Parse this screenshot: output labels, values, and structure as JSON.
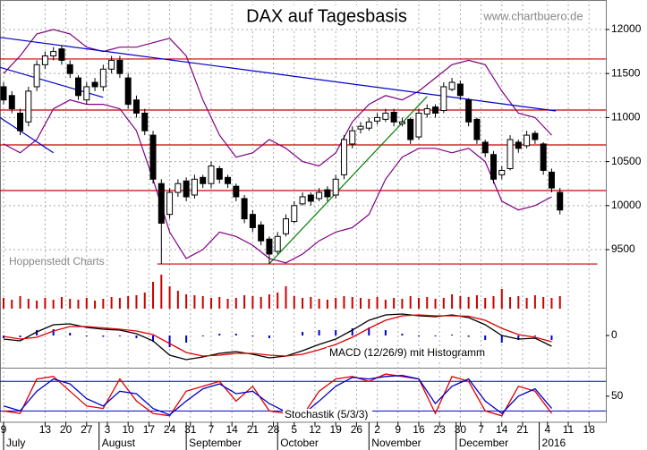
{
  "chart_data": [
    {
      "type": "candlestick",
      "title": "DAX auf Tagesbasis",
      "annotations": [
        "www.chartbuero.de",
        "Hoppenstedt Charts"
      ],
      "x": [
        0,
        2,
        4,
        6,
        8,
        10,
        12,
        14,
        16,
        18,
        20,
        22,
        24,
        26,
        28,
        30,
        32,
        34,
        36,
        38,
        40,
        42,
        44,
        46,
        48,
        50,
        52,
        54,
        56,
        58,
        60,
        62,
        64,
        66,
        68,
        70,
        72,
        74,
        76,
        78,
        80,
        82,
        84,
        86,
        88,
        90,
        92,
        94,
        96,
        98,
        100,
        102,
        104,
        106,
        108,
        110,
        112,
        114,
        116,
        118,
        120,
        122,
        124,
        126,
        128,
        130,
        132,
        134
      ],
      "open": [
        11350,
        11250,
        11050,
        10950,
        11350,
        11600,
        11700,
        11780,
        11600,
        11450,
        11200,
        11400,
        11350,
        11550,
        11650,
        11450,
        11200,
        11050,
        10800,
        10250,
        9900,
        10150,
        10280,
        10120,
        10320,
        10250,
        10420,
        10320,
        10220,
        10080,
        9900,
        9780,
        9620,
        9480,
        9680,
        9820,
        10020,
        10120,
        10080,
        10180,
        10120,
        10350,
        10700,
        10870,
        10880,
        10960,
        10980,
        11060,
        10930,
        10980,
        10780,
        11040,
        11120,
        11080,
        11320,
        11380,
        11200,
        10980,
        10720,
        10580,
        10350,
        10420,
        10720,
        10680,
        10820,
        10700,
        10380,
        10150
      ],
      "high": [
        11400,
        11300,
        11100,
        11350,
        11650,
        11750,
        11800,
        11820,
        11650,
        11480,
        11400,
        11450,
        11600,
        11700,
        11700,
        11500,
        11250,
        11100,
        10850,
        10300,
        10200,
        10300,
        10320,
        10350,
        10350,
        10500,
        10450,
        10350,
        10250,
        10120,
        9950,
        9820,
        9650,
        9700,
        9900,
        10050,
        10150,
        10150,
        10200,
        10220,
        10350,
        10800,
        10900,
        10950,
        11000,
        11050,
        11100,
        11100,
        11000,
        11000,
        11100,
        11150,
        11150,
        11400,
        11450,
        11420,
        11220,
        11000,
        10750,
        10620,
        10450,
        10800,
        10750,
        10850,
        10850,
        10720,
        10420,
        10200
      ],
      "low": [
        11150,
        11050,
        10800,
        10900,
        11300,
        11550,
        11650,
        11600,
        11450,
        11200,
        11150,
        11300,
        11300,
        11500,
        11450,
        11100,
        11000,
        10800,
        10250,
        9338,
        9850,
        10100,
        10050,
        10080,
        10200,
        10200,
        10250,
        10200,
        10050,
        9800,
        9700,
        9550,
        9340,
        9450,
        9650,
        9800,
        10000,
        10000,
        10050,
        10050,
        10080,
        10300,
        10650,
        10820,
        10850,
        10920,
        10950,
        10900,
        10900,
        10700,
        10750,
        11000,
        11000,
        11050,
        11300,
        11200,
        10900,
        10700,
        10550,
        10250,
        10300,
        10400,
        10600,
        10650,
        10700,
        10350,
        10150,
        9900
      ],
      "close": [
        11200,
        11100,
        10850,
        11300,
        11600,
        11700,
        11750,
        11650,
        11500,
        11250,
        11350,
        11350,
        11550,
        11650,
        11500,
        11150,
        11050,
        10850,
        10300,
        9800,
        10150,
        10250,
        10100,
        10300,
        10250,
        10450,
        10300,
        10250,
        10100,
        9850,
        9750,
        9600,
        9450,
        9650,
        9850,
        10000,
        10100,
        10050,
        10150,
        10100,
        10300,
        10750,
        10850,
        10900,
        10950,
        11000,
        11050,
        10950,
        10950,
        10750,
        11050,
        11100,
        11050,
        11350,
        11400,
        11250,
        10950,
        10750,
        10600,
        10300,
        10400,
        10750,
        10650,
        10800,
        10750,
        10400,
        10200,
        9950
      ],
      "bollinger": {
        "color": "#800080",
        "x": [
          0,
          4,
          8,
          12,
          16,
          20,
          24,
          28,
          32,
          36,
          40,
          44,
          48,
          52,
          56,
          60,
          64,
          68,
          72,
          76,
          80,
          84,
          88,
          92,
          96,
          100,
          104,
          108,
          112,
          116,
          120,
          124,
          128,
          132
        ],
        "upper": [
          11500,
          11700,
          11950,
          12000,
          11950,
          11800,
          11750,
          11800,
          11800,
          11850,
          11900,
          11700,
          11200,
          10800,
          10550,
          10600,
          10750,
          10650,
          10500,
          10450,
          10600,
          10950,
          11150,
          11250,
          11200,
          11300,
          11450,
          11600,
          11650,
          11600,
          11300,
          11050,
          11000,
          10800
        ],
        "lower": [
          10700,
          10600,
          10750,
          11100,
          11200,
          11150,
          11150,
          11100,
          10850,
          10300,
          9700,
          9400,
          9500,
          9700,
          9650,
          9550,
          9400,
          9350,
          9450,
          9600,
          9700,
          9750,
          9900,
          10300,
          10550,
          10650,
          10650,
          10600,
          10650,
          10500,
          10050,
          9950,
          10000,
          10100
        ]
      },
      "lines": [
        {
          "color": "#0000cc",
          "x": [
            -0.86,
            133
          ],
          "y": [
            11910,
            11075
          ]
        },
        {
          "color": "#0000cc",
          "x": [
            -0.86,
            24
          ],
          "y": [
            11570,
            11230
          ]
        },
        {
          "color": "#0000cc",
          "x": [
            -0.86,
            12
          ],
          "y": [
            11000,
            10600
          ]
        },
        {
          "color": "#008000",
          "x": [
            64,
            102
          ],
          "y": [
            9340,
            11240
          ]
        }
      ],
      "hlines": [
        {
          "color": "#cc0000",
          "y": 11665,
          "x": [
            -0.86,
            145.05
          ]
        },
        {
          "color": "#cc0000",
          "y": 11085,
          "x": [
            -0.86,
            145.05
          ]
        },
        {
          "color": "#cc0000",
          "y": 10689,
          "x": [
            -0.86,
            145.05
          ]
        },
        {
          "color": "#cc0000",
          "y": 10171,
          "x": [
            -0.86,
            145.05
          ]
        },
        {
          "color": "#cc0000",
          "y": 9337,
          "x": [
            37,
            143
          ]
        }
      ],
      "xlim": [
        -0.86,
        145.05
      ],
      "ylim": [
        9287,
        12335
      ],
      "yticks": [
        9500,
        10000,
        10500,
        11000,
        11500,
        12000
      ],
      "grid": true,
      "xticks": [
        {
          "value": 0,
          "label": "9"
        },
        {
          "value": 10,
          "label": "13"
        },
        {
          "value": 15,
          "label": "20"
        },
        {
          "value": 20,
          "label": "27"
        },
        {
          "value": 25,
          "label": "3"
        },
        {
          "value": 30,
          "label": "10"
        },
        {
          "value": 35,
          "label": "17"
        },
        {
          "value": 40,
          "label": "24"
        },
        {
          "value": 45,
          "label": "31"
        },
        {
          "value": 50,
          "label": "7"
        },
        {
          "value": 55,
          "label": "14"
        },
        {
          "value": 60,
          "label": "21"
        },
        {
          "value": 65,
          "label": "28"
        },
        {
          "value": 70,
          "label": "5"
        },
        {
          "value": 75,
          "label": "12"
        },
        {
          "value": 80,
          "label": "19"
        },
        {
          "value": 85,
          "label": "26"
        },
        {
          "value": 90,
          "label": "2"
        },
        {
          "value": 95,
          "label": "9"
        },
        {
          "value": 100,
          "label": "16"
        },
        {
          "value": 105,
          "label": "23"
        },
        {
          "value": 110,
          "label": "30"
        },
        {
          "value": 115,
          "label": "7"
        },
        {
          "value": 120,
          "label": "14"
        },
        {
          "value": 125,
          "label": "21"
        },
        {
          "value": 131,
          "label": "4"
        },
        {
          "value": 136,
          "label": "11"
        },
        {
          "value": 141,
          "label": "18"
        }
      ],
      "months": [
        {
          "value": 0,
          "label": "July"
        },
        {
          "value": 23,
          "label": "August"
        },
        {
          "value": 44,
          "label": "September"
        },
        {
          "value": 66,
          "label": "October"
        },
        {
          "value": 88,
          "label": "November"
        },
        {
          "value": 109,
          "label": "December"
        },
        {
          "value": 129,
          "label": "2016"
        }
      ]
    },
    {
      "type": "bar",
      "color": "#cc0000",
      "ylim": [
        0,
        40
      ],
      "values": [
        12,
        10,
        14,
        11,
        9,
        12,
        10,
        13,
        11,
        10,
        12,
        9,
        11,
        13,
        12,
        14,
        15,
        18,
        30,
        38,
        25,
        20,
        16,
        15,
        14,
        12,
        13,
        11,
        12,
        15,
        14,
        13,
        16,
        18,
        25,
        14,
        12,
        13,
        11,
        10,
        12,
        14,
        13,
        12,
        11,
        13,
        10,
        12,
        11,
        14,
        12,
        13,
        11,
        12,
        16,
        14,
        13,
        15,
        12,
        14,
        22,
        13,
        14,
        12,
        15,
        13,
        12,
        14
      ]
    },
    {
      "type": "line",
      "label": "MACD (12/26/9) mit Histogramm",
      "ylim": [
        -330,
        300
      ],
      "yticks": [
        0
      ],
      "x": [
        0,
        4,
        8,
        12,
        16,
        20,
        24,
        28,
        32,
        36,
        40,
        44,
        48,
        52,
        56,
        60,
        64,
        68,
        72,
        76,
        80,
        84,
        88,
        92,
        96,
        100,
        104,
        108,
        112,
        116,
        120,
        124,
        128,
        132
      ],
      "series": [
        {
          "color": "#000000",
          "values": [
            -40,
            -60,
            40,
            120,
            130,
            90,
            70,
            60,
            20,
            -60,
            -220,
            -270,
            -240,
            -200,
            -180,
            -210,
            -250,
            -230,
            -170,
            -100,
            -40,
            60,
            170,
            230,
            240,
            220,
            210,
            230,
            200,
            120,
            0,
            -40,
            -30,
            -120
          ]
        },
        {
          "color": "#dd0000",
          "values": [
            -10,
            -40,
            -20,
            50,
            100,
            100,
            85,
            70,
            50,
            10,
            -90,
            -190,
            -230,
            -220,
            -200,
            -200,
            -220,
            -230,
            -210,
            -160,
            -100,
            -20,
            80,
            170,
            220,
            230,
            220,
            220,
            215,
            170,
            80,
            10,
            -20,
            -70
          ]
        }
      ],
      "histogram": {
        "color": "#0000cc",
        "values": [
          -30,
          -20,
          60,
          70,
          30,
          -10,
          -15,
          -10,
          -30,
          -70,
          -130,
          -80,
          -10,
          20,
          20,
          -10,
          -30,
          0,
          40,
          60,
          60,
          80,
          90,
          60,
          20,
          -10,
          -10,
          10,
          -15,
          -50,
          -80,
          -50,
          -10,
          -50
        ]
      }
    },
    {
      "type": "line",
      "label": "Stochastik (5/3/3)",
      "ylim": [
        -3,
        106
      ],
      "yticks": [
        50
      ],
      "x": [
        0,
        4,
        8,
        12,
        16,
        20,
        24,
        28,
        32,
        36,
        40,
        44,
        48,
        52,
        56,
        60,
        64,
        68,
        72,
        76,
        80,
        84,
        88,
        92,
        96,
        100,
        104,
        108,
        112,
        116,
        120,
        124,
        128,
        132
      ],
      "hlines": [
        {
          "color": "#0000cc",
          "y": 20
        },
        {
          "color": "#0000cc",
          "y": 80
        }
      ],
      "series": [
        {
          "color": "#dd0000",
          "values": [
            20,
            15,
            85,
            90,
            60,
            30,
            25,
            85,
            40,
            15,
            10,
            60,
            70,
            80,
            40,
            70,
            20,
            15,
            10,
            60,
            85,
            90,
            80,
            95,
            90,
            85,
            15,
            90,
            80,
            20,
            10,
            70,
            60,
            15
          ]
        },
        {
          "color": "#0000cc",
          "values": [
            30,
            20,
            60,
            85,
            75,
            45,
            30,
            60,
            55,
            25,
            12,
            40,
            65,
            75,
            55,
            60,
            35,
            18,
            12,
            40,
            70,
            88,
            85,
            90,
            92,
            85,
            35,
            70,
            85,
            40,
            15,
            50,
            65,
            25
          ]
        }
      ]
    }
  ]
}
